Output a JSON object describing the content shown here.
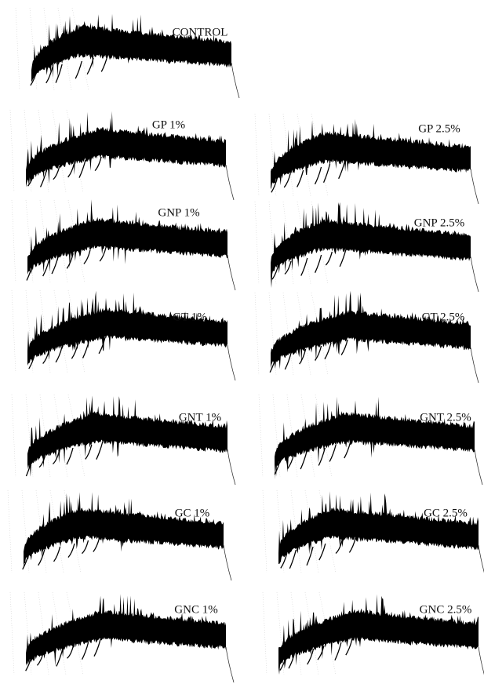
{
  "panels": [
    {
      "label": "CONTROL"
    },
    {
      "label": "GP 1%"
    },
    {
      "label": "GP 2.5%"
    },
    {
      "label": "GNP 1%"
    },
    {
      "label": "GNP 2.5%"
    },
    {
      "label": "GT 1%"
    },
    {
      "label": "GT 2.5%"
    },
    {
      "label": "GNT 1%"
    },
    {
      "label": "GNT 2.5%"
    },
    {
      "label": "GC 1%"
    },
    {
      "label": "GC 2.5%"
    },
    {
      "label": "GNC 1%"
    },
    {
      "label": "GNC 2.5%"
    }
  ]
}
